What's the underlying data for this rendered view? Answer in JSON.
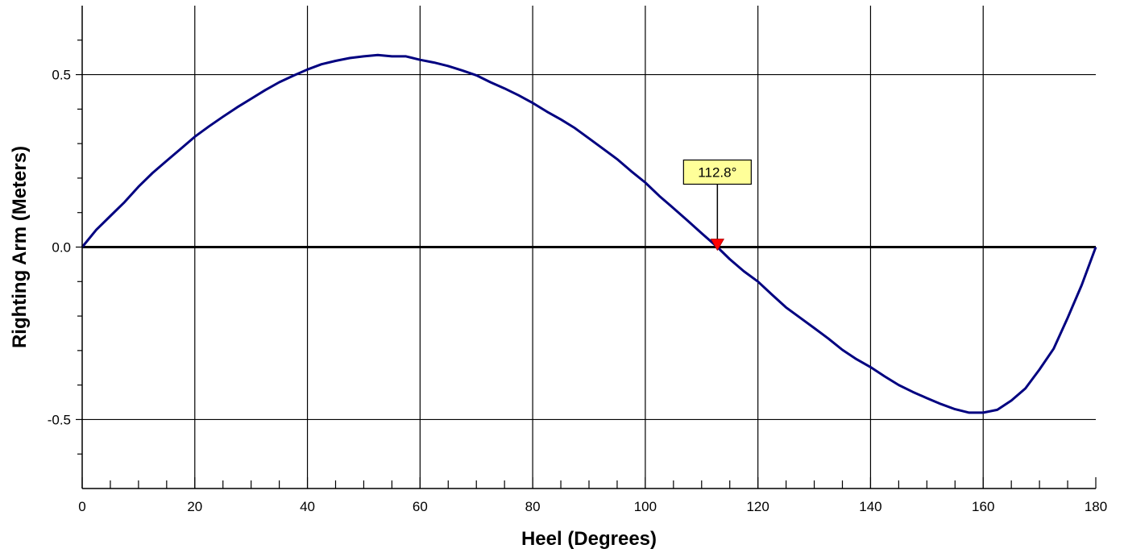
{
  "chart_data": {
    "type": "line",
    "title": "",
    "xlabel": "Heel (Degrees)",
    "ylabel": "Righting Arm (Meters)",
    "xlim": [
      0,
      180
    ],
    "ylim": [
      -0.7,
      0.7
    ],
    "x_ticks": [
      0,
      20,
      40,
      60,
      80,
      100,
      120,
      140,
      160,
      180
    ],
    "x_tick_labels": [
      "0",
      "20",
      "40",
      "60",
      "80",
      "100",
      "120",
      "140",
      "160",
      "180"
    ],
    "x_minor_step": 5,
    "y_ticks": [
      0.5,
      0.0,
      -0.5
    ],
    "y_tick_labels": [
      "0.5",
      "0.0",
      "-0.5"
    ],
    "y_minor_ticks": [
      0.6,
      0.4,
      0.3,
      0.2,
      0.1,
      -0.1,
      -0.2,
      -0.3,
      -0.4,
      -0.6
    ],
    "grid": true,
    "legend": "none",
    "series": [
      {
        "color": "#000080",
        "x": [
          0,
          2.5,
          5,
          7.5,
          10,
          12.5,
          15,
          17.5,
          20,
          22.5,
          25,
          27.5,
          30,
          32.5,
          35,
          37.5,
          40,
          42.5,
          45,
          47.5,
          50,
          52.5,
          55,
          57.5,
          60,
          62.5,
          65,
          67.5,
          70,
          72.5,
          75,
          77.5,
          80,
          82.5,
          85,
          87.5,
          90,
          92.5,
          95,
          97.5,
          100,
          102.5,
          105,
          107.5,
          110,
          112.8,
          115,
          117.5,
          120,
          122.5,
          125,
          127.5,
          130,
          132.5,
          135,
          137.5,
          140,
          142.5,
          145,
          147.5,
          150,
          152.5,
          155,
          157.5,
          160,
          162.5,
          165,
          167.5,
          170,
          172.5,
          175,
          177.5,
          180
        ],
        "y": [
          0.0,
          0.05,
          0.09,
          0.13,
          0.175,
          0.215,
          0.25,
          0.285,
          0.32,
          0.35,
          0.378,
          0.405,
          0.43,
          0.455,
          0.478,
          0.497,
          0.515,
          0.53,
          0.54,
          0.548,
          0.553,
          0.557,
          0.553,
          0.553,
          0.543,
          0.535,
          0.525,
          0.512,
          0.498,
          0.478,
          0.46,
          0.44,
          0.418,
          0.393,
          0.37,
          0.345,
          0.315,
          0.285,
          0.255,
          0.22,
          0.187,
          0.148,
          0.113,
          0.077,
          0.04,
          0.0,
          -0.035,
          -0.07,
          -0.1,
          -0.138,
          -0.175,
          -0.205,
          -0.235,
          -0.265,
          -0.298,
          -0.325,
          -0.348,
          -0.375,
          -0.4,
          -0.42,
          -0.438,
          -0.455,
          -0.47,
          -0.48,
          -0.48,
          -0.472,
          -0.445,
          -0.41,
          -0.355,
          -0.295,
          -0.205,
          -0.11,
          0.0
        ]
      }
    ],
    "annotation": {
      "label": "112.8°",
      "x": 112.8,
      "y": 0.0,
      "box_color": "#FFFF99",
      "marker_color": "#FF0000"
    }
  }
}
